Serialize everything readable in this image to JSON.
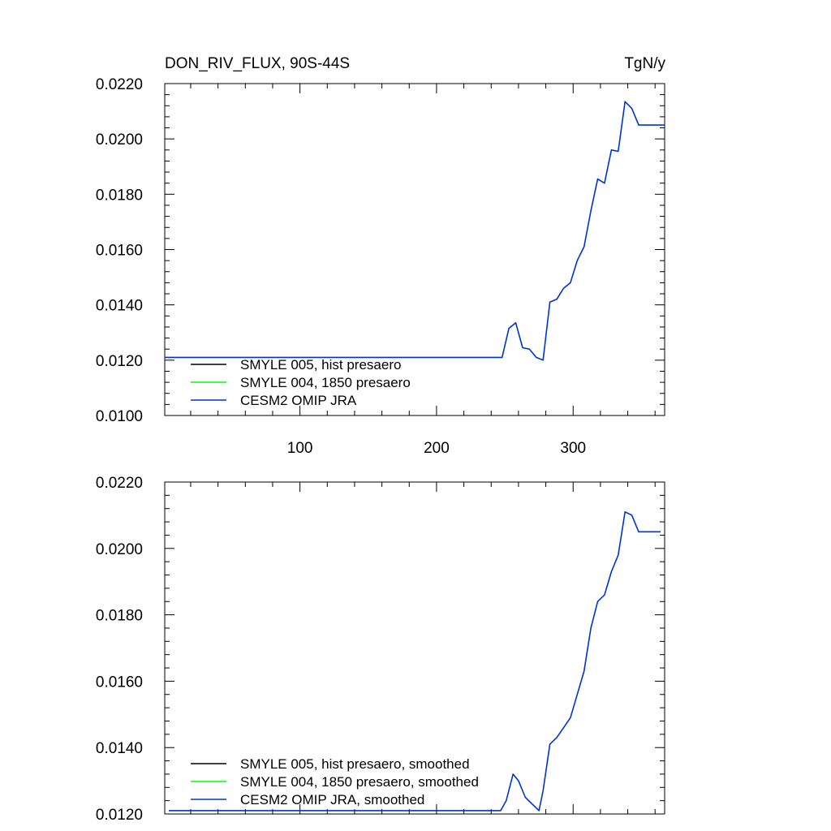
{
  "chart_data": [
    {
      "type": "line",
      "title": "DON_RIV_FLUX, 90S-44S",
      "units": "TgN/y",
      "xlabel": "",
      "ylabel": "",
      "xlim": [
        1,
        367
      ],
      "ylim": [
        0.01,
        0.022
      ],
      "x_ticks": [
        100,
        200,
        300
      ],
      "x_tick_labels": [
        "100",
        "200",
        "300"
      ],
      "y_ticks": [
        0.01,
        0.012,
        0.014,
        0.016,
        0.018,
        0.02,
        0.022
      ],
      "y_tick_labels": [
        "0.0100",
        "0.0120",
        "0.0140",
        "0.0160",
        "0.0180",
        "0.0200",
        "0.0220"
      ],
      "grid": false,
      "legend_position": "bottom-left",
      "series": [
        {
          "name": "SMYLE 005, hist presaero",
          "color": "#000000",
          "x": [],
          "y": []
        },
        {
          "name": "SMYLE 004, 1850 presaero",
          "color": "#00ff00",
          "x": [],
          "y": []
        },
        {
          "name": "CESM2 OMIP JRA",
          "color": "#0033cc",
          "x": [
            1,
            248,
            253,
            258,
            263,
            268,
            273,
            278,
            283,
            288,
            293,
            298,
            303,
            308,
            313,
            318,
            323,
            328,
            333,
            338,
            343,
            348,
            367
          ],
          "y": [
            0.0121,
            0.0121,
            0.01315,
            0.01335,
            0.01245,
            0.0124,
            0.0121,
            0.012,
            0.0141,
            0.0142,
            0.0146,
            0.0148,
            0.0156,
            0.0161,
            0.0174,
            0.01855,
            0.0184,
            0.0196,
            0.01955,
            0.02135,
            0.0211,
            0.0205,
            0.0205
          ]
        }
      ]
    },
    {
      "type": "line",
      "title": "",
      "xlabel": "",
      "ylabel": "",
      "xlim": [
        1,
        367
      ],
      "ylim": [
        0.012,
        0.022
      ],
      "x_ticks": [
        100,
        200,
        300
      ],
      "x_tick_labels": [],
      "y_ticks": [
        0.012,
        0.014,
        0.016,
        0.018,
        0.02,
        0.022
      ],
      "y_tick_labels": [
        "0.0120",
        "0.0140",
        "0.0160",
        "0.0180",
        "0.0200",
        "0.0220"
      ],
      "grid": false,
      "legend_position": "bottom-left",
      "series": [
        {
          "name": "SMYLE 005, hist presaero, smoothed",
          "color": "#000000",
          "x": [],
          "y": []
        },
        {
          "name": "SMYLE 004, 1850 presaero, smoothed",
          "color": "#00ff00",
          "x": [],
          "y": []
        },
        {
          "name": "CESM2 OMIP JRA, smoothed",
          "color": "#0033cc",
          "x": [
            4,
            247,
            251,
            256,
            260,
            265,
            270,
            275,
            278,
            283,
            288,
            293,
            298,
            303,
            308,
            313,
            318,
            323,
            328,
            333,
            338,
            343,
            348,
            364
          ],
          "y": [
            0.0121,
            0.0121,
            0.0124,
            0.0132,
            0.013,
            0.0125,
            0.0123,
            0.0121,
            0.0127,
            0.0141,
            0.0143,
            0.0146,
            0.0149,
            0.0156,
            0.0163,
            0.0176,
            0.0184,
            0.0186,
            0.0193,
            0.0198,
            0.0211,
            0.021,
            0.0205,
            0.0205
          ]
        }
      ]
    }
  ]
}
